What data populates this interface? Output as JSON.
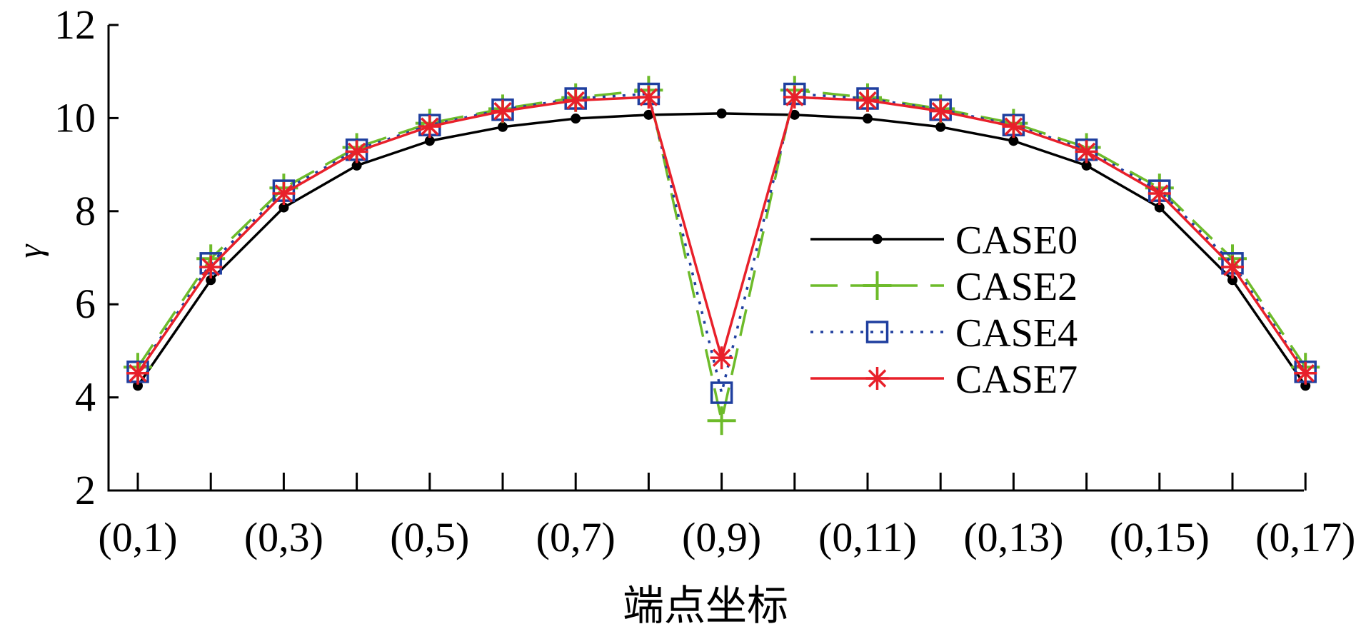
{
  "chart_data": {
    "type": "line",
    "xlabel": "端点坐标",
    "ylabel": "γ",
    "ylim": [
      2,
      12
    ],
    "yticks": [
      2,
      4,
      6,
      8,
      10,
      12
    ],
    "x": [
      1,
      2,
      3,
      4,
      5,
      6,
      7,
      8,
      9,
      10,
      11,
      12,
      13,
      14,
      15,
      16,
      17
    ],
    "xticks": [
      {
        "x": 1,
        "label": "(0,1)"
      },
      {
        "x": 3,
        "label": "(0,3)"
      },
      {
        "x": 5,
        "label": "(0,5)"
      },
      {
        "x": 7,
        "label": "(0,7)"
      },
      {
        "x": 9,
        "label": "(0,9)"
      },
      {
        "x": 11,
        "label": "(0,11)"
      },
      {
        "x": 13,
        "label": "(0,13)"
      },
      {
        "x": 15,
        "label": "(0,15)"
      },
      {
        "x": 17,
        "label": "(0,17)"
      }
    ],
    "legend_position": "center-right",
    "grid": false,
    "series": [
      {
        "name": "CASE0",
        "color": "#000000",
        "marker": "dot",
        "dash": "solid",
        "values": [
          4.25,
          6.52,
          8.08,
          8.98,
          9.51,
          9.81,
          9.99,
          10.07,
          10.1,
          10.07,
          9.99,
          9.81,
          9.51,
          8.98,
          8.08,
          6.52,
          4.25
        ]
      },
      {
        "name": "CASE2",
        "color": "#6dbb2a",
        "marker": "plus",
        "dash": "dashed",
        "values": [
          4.65,
          6.98,
          8.5,
          9.37,
          9.89,
          10.2,
          10.44,
          10.6,
          3.5,
          10.6,
          10.44,
          10.2,
          9.89,
          9.37,
          8.5,
          6.98,
          4.65
        ]
      },
      {
        "name": "CASE4",
        "color": "#1f3f9f",
        "marker": "square",
        "dash": "dotted",
        "values": [
          4.55,
          6.88,
          8.44,
          9.32,
          9.85,
          10.18,
          10.42,
          10.52,
          4.1,
          10.52,
          10.42,
          10.18,
          9.85,
          9.32,
          8.44,
          6.88,
          4.55
        ]
      },
      {
        "name": "CASE7",
        "color": "#e8202a",
        "marker": "asterisk",
        "dash": "solid",
        "values": [
          4.52,
          6.8,
          8.38,
          9.28,
          9.82,
          10.15,
          10.38,
          10.45,
          4.85,
          10.45,
          10.38,
          10.15,
          9.82,
          9.28,
          8.38,
          6.8,
          4.52
        ]
      }
    ]
  }
}
